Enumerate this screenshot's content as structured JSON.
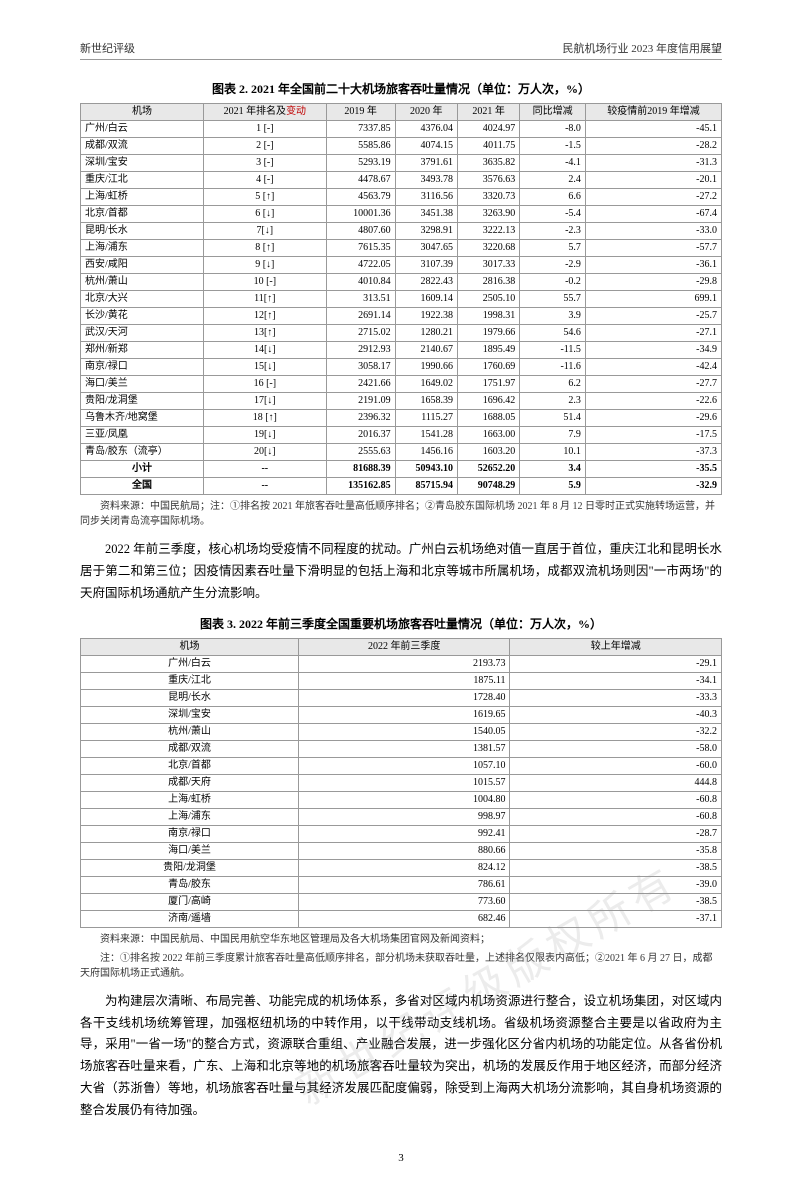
{
  "header": {
    "left": "新世纪评级",
    "right": "民航机场行业 2023 年度信用展望"
  },
  "table1": {
    "title": "图表 2. 2021 年全国前二十大机场旅客吞吐量情况（单位：万人次，%）",
    "headers": [
      "机场",
      "2021 年排名及",
      "2019 年",
      "2020 年",
      "2021 年",
      "同比增减",
      "较疫情前2019 年增减"
    ],
    "header_red": "变动",
    "rows": [
      [
        "广州/白云",
        "1 [-]",
        "7337.85",
        "4376.04",
        "4024.97",
        "-8.0",
        "-45.1"
      ],
      [
        "成都/双流",
        "2 [-]",
        "5585.86",
        "4074.15",
        "4011.75",
        "-1.5",
        "-28.2"
      ],
      [
        "深圳/宝安",
        "3 [-]",
        "5293.19",
        "3791.61",
        "3635.82",
        "-4.1",
        "-31.3"
      ],
      [
        "重庆/江北",
        "4 [-]",
        "4478.67",
        "3493.78",
        "3576.63",
        "2.4",
        "-20.1"
      ],
      [
        "上海/虹桥",
        "5 [↑]",
        "4563.79",
        "3116.56",
        "3320.73",
        "6.6",
        "-27.2"
      ],
      [
        "北京/首都",
        "6 [↓]",
        "10001.36",
        "3451.38",
        "3263.90",
        "-5.4",
        "-67.4"
      ],
      [
        "昆明/长水",
        "7[↓]",
        "4807.60",
        "3298.91",
        "3222.13",
        "-2.3",
        "-33.0"
      ],
      [
        "上海/浦东",
        "8 [↑]",
        "7615.35",
        "3047.65",
        "3220.68",
        "5.7",
        "-57.7"
      ],
      [
        "西安/咸阳",
        "9 [↓]",
        "4722.05",
        "3107.39",
        "3017.33",
        "-2.9",
        "-36.1"
      ],
      [
        "杭州/萧山",
        "10 [-]",
        "4010.84",
        "2822.43",
        "2816.38",
        "-0.2",
        "-29.8"
      ],
      [
        "北京/大兴",
        "11[↑]",
        "313.51",
        "1609.14",
        "2505.10",
        "55.7",
        "699.1"
      ],
      [
        "长沙/黄花",
        "12[↑]",
        "2691.14",
        "1922.38",
        "1998.31",
        "3.9",
        "-25.7"
      ],
      [
        "武汉/天河",
        "13[↑]",
        "2715.02",
        "1280.21",
        "1979.66",
        "54.6",
        "-27.1"
      ],
      [
        "郑州/新郑",
        "14[↓]",
        "2912.93",
        "2140.67",
        "1895.49",
        "-11.5",
        "-34.9"
      ],
      [
        "南京/禄口",
        "15[↓]",
        "3058.17",
        "1990.66",
        "1760.69",
        "-11.6",
        "-42.4"
      ],
      [
        "海口/美兰",
        "16 [-]",
        "2421.66",
        "1649.02",
        "1751.97",
        "6.2",
        "-27.7"
      ],
      [
        "贵阳/龙洞堡",
        "17[↓]",
        "2191.09",
        "1658.39",
        "1696.42",
        "2.3",
        "-22.6"
      ],
      [
        "乌鲁木齐/地窝堡",
        "18 [↑]",
        "2396.32",
        "1115.27",
        "1688.05",
        "51.4",
        "-29.6"
      ],
      [
        "三亚/凤凰",
        "19[↓]",
        "2016.37",
        "1541.28",
        "1663.00",
        "7.9",
        "-17.5"
      ],
      [
        "青岛/胶东（流亭）",
        "20[↓]",
        "2555.63",
        "1456.16",
        "1603.20",
        "10.1",
        "-37.3"
      ]
    ],
    "subtotal": [
      "小计",
      "--",
      "81688.39",
      "50943.10",
      "52652.20",
      "3.4",
      "-35.5"
    ],
    "total": [
      "全国",
      "--",
      "135162.85",
      "85715.94",
      "90748.29",
      "5.9",
      "-32.9"
    ],
    "source": "资料来源：中国民航局；注：①排名按 2021 年旅客吞吐量高低顺序排名；②青岛胶东国际机场 2021 年 8 月 12 日零时正式实施转场运营，并同步关闭青岛流亭国际机场。"
  },
  "para1": "2022 年前三季度，核心机场均受疫情不同程度的扰动。广州白云机场绝对值一直居于首位，重庆江北和昆明长水居于第二和第三位；因疫情因素吞吐量下滑明显的包括上海和北京等城市所属机场，成都双流机场则因\"一市两场\"的天府国际机场通航产生分流影响。",
  "table2": {
    "title": "图表 3. 2022 年前三季度全国重要机场旅客吞吐量情况（单位：万人次，%）",
    "headers": [
      "机场",
      "2022 年前三季度",
      "较上年增减"
    ],
    "rows": [
      [
        "广州/白云",
        "2193.73",
        "-29.1"
      ],
      [
        "重庆/江北",
        "1875.11",
        "-34.1"
      ],
      [
        "昆明/长水",
        "1728.40",
        "-33.3"
      ],
      [
        "深圳/宝安",
        "1619.65",
        "-40.3"
      ],
      [
        "杭州/萧山",
        "1540.05",
        "-32.2"
      ],
      [
        "成都/双流",
        "1381.57",
        "-58.0"
      ],
      [
        "北京/首都",
        "1057.10",
        "-60.0"
      ],
      [
        "成都/天府",
        "1015.57",
        "444.8"
      ],
      [
        "上海/虹桥",
        "1004.80",
        "-60.8"
      ],
      [
        "上海/浦东",
        "998.97",
        "-60.8"
      ],
      [
        "南京/禄口",
        "992.41",
        "-28.7"
      ],
      [
        "海口/美兰",
        "880.66",
        "-35.8"
      ],
      [
        "贵阳/龙洞堡",
        "824.12",
        "-38.5"
      ],
      [
        "青岛/胶东",
        "786.61",
        "-39.0"
      ],
      [
        "厦门/高崎",
        "773.60",
        "-38.5"
      ],
      [
        "济南/遥墙",
        "682.46",
        "-37.1"
      ]
    ],
    "source1": "资料来源：中国民航局、中国民用航空华东地区管理局及各大机场集团官网及新闻资料；",
    "source2": "注：①排名按 2022 年前三季度累计旅客吞吐量高低顺序排名，部分机场未获取吞吐量，上述排名仅限表内高低；②2021 年 6 月 27 日，成都天府国际机场正式通航。"
  },
  "para2": "为构建层次清晰、布局完善、功能完成的机场体系，多省对区域内机场资源进行整合，设立机场集团，对区域内各干支线机场统筹管理，加强枢纽机场的中转作用，以干线带动支线机场。省级机场资源整合主要是以省政府为主导，采用\"一省一场\"的整合方式，资源联合重组、产业融合发展，进一步强化区分省内机场的功能定位。从各省份机场旅客吞吐量来看，广东、上海和北京等地的机场旅客吞吐量较为突出，机场的发展反作用于地区经济，而部分经济大省（苏浙鲁）等地，机场旅客吞吐量与其经济发展匹配度偏弱，除受到上海两大机场分流影响，其自身机场资源的整合发展仍有待加强。",
  "page_number": "3",
  "watermark": "新世纪评级版权所有"
}
